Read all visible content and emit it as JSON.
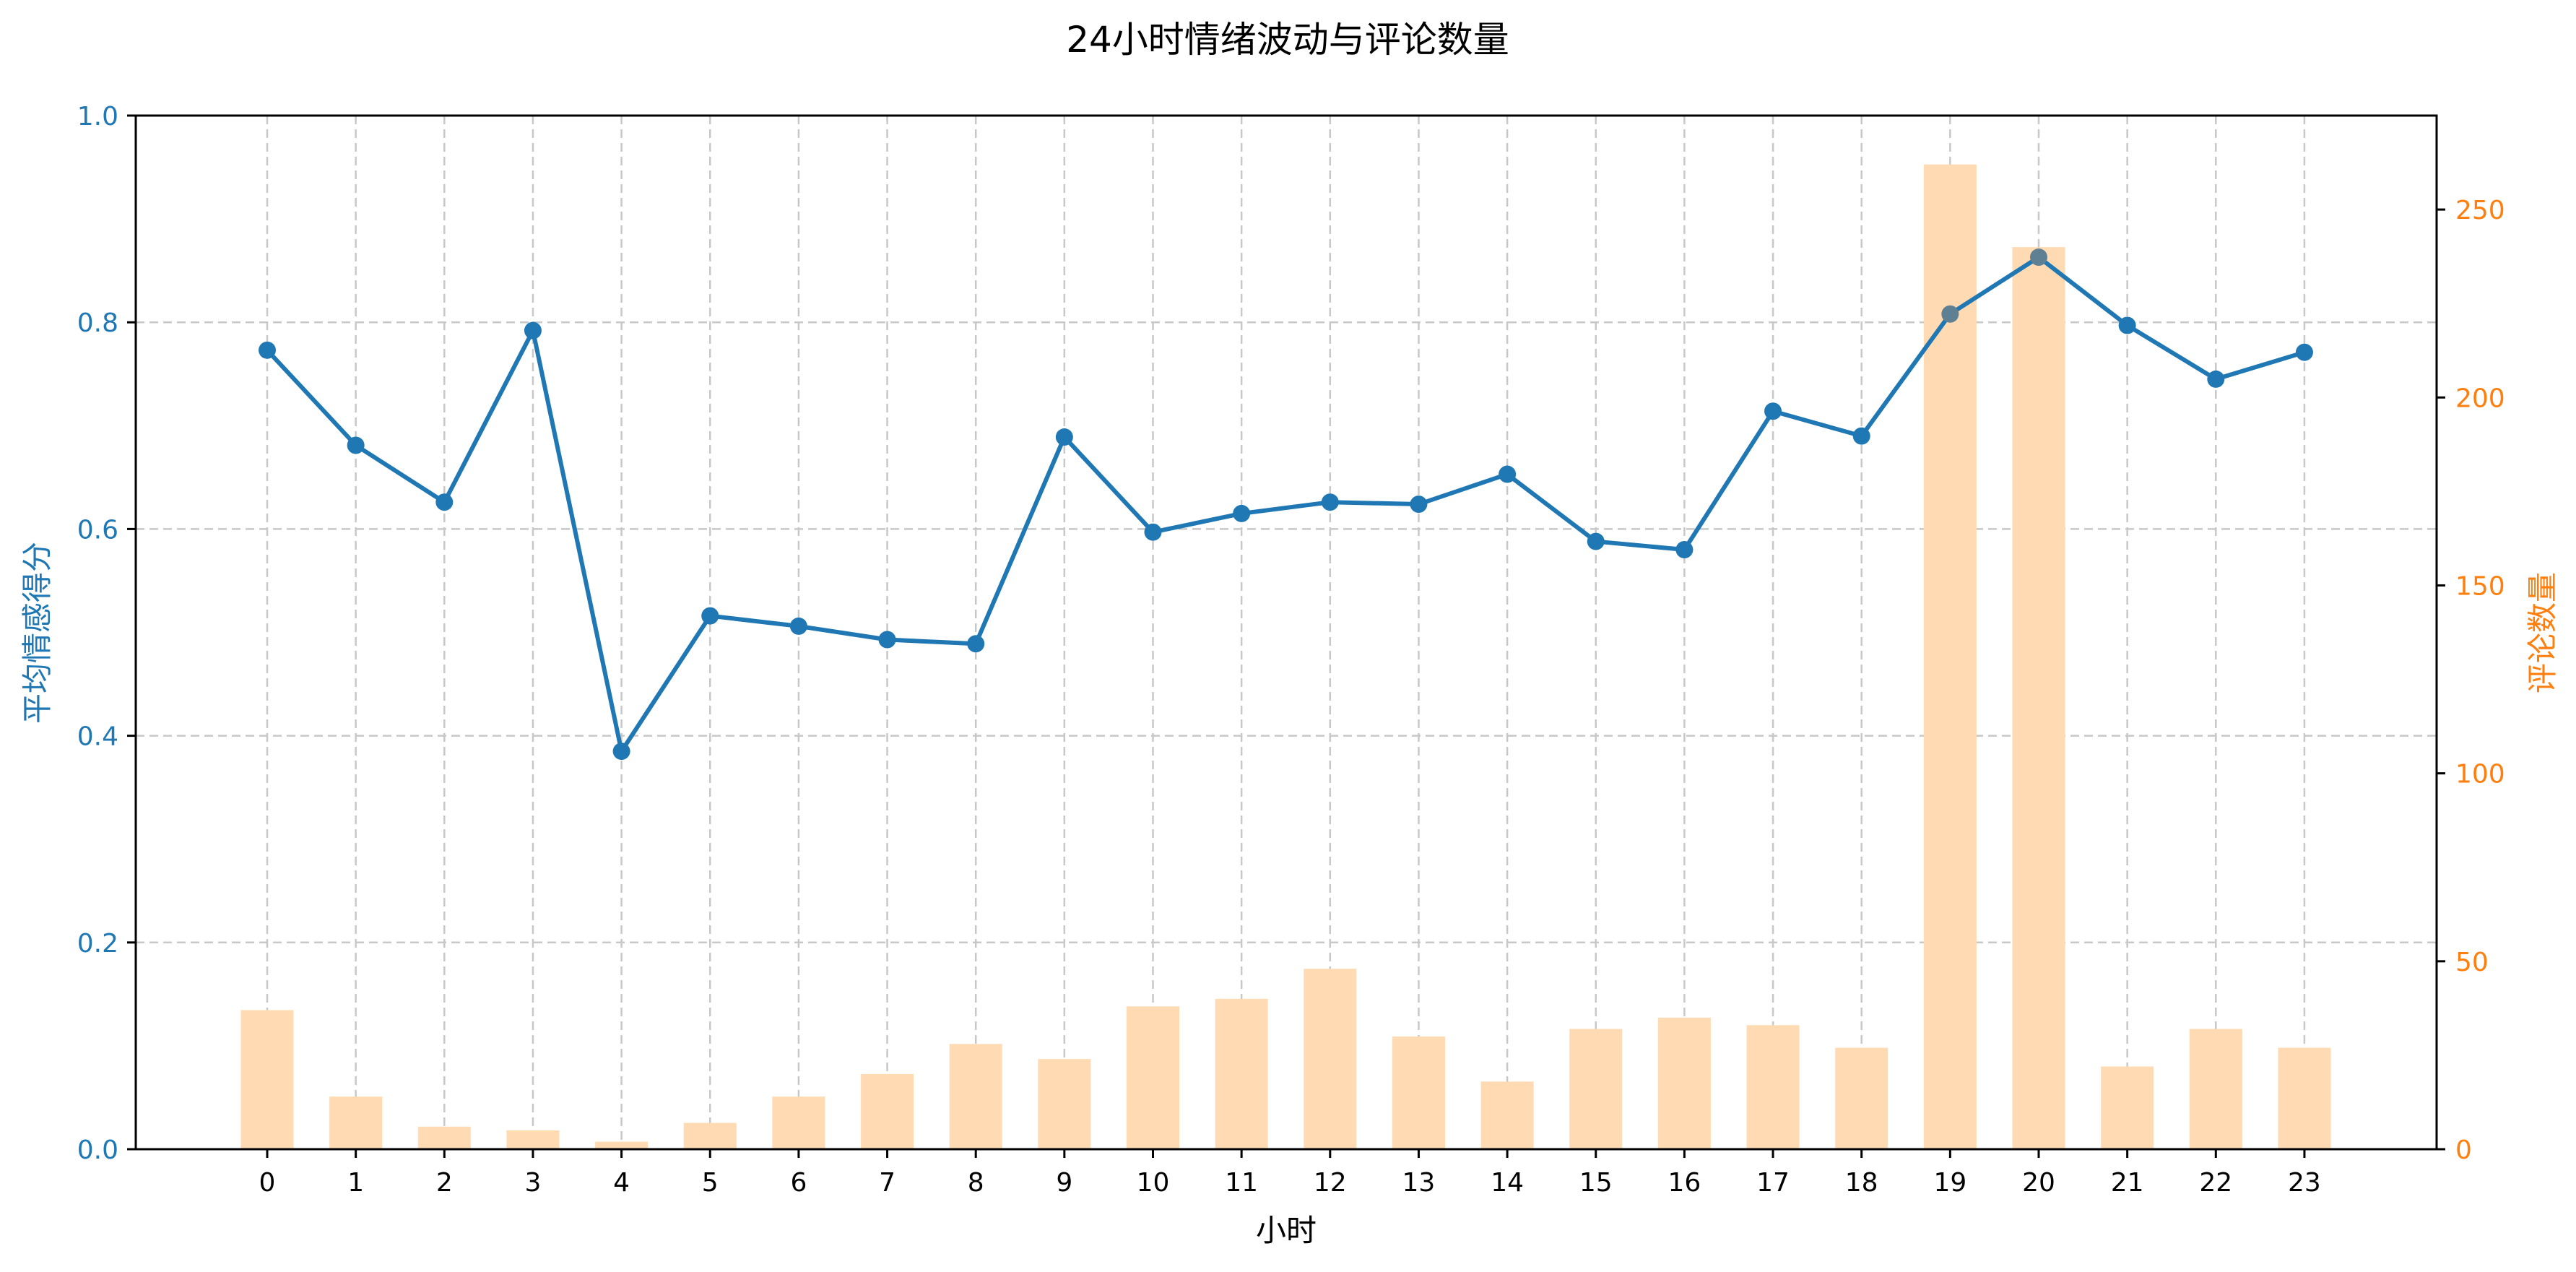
{
  "chart_data": {
    "type": "bar+line",
    "title": "24小时情绪波动与评论数量",
    "xlabel": "小时",
    "ylabel_left": "平均情感得分",
    "ylabel_right": "评论数量",
    "categories": [
      "0",
      "1",
      "2",
      "3",
      "4",
      "5",
      "6",
      "7",
      "8",
      "9",
      "10",
      "11",
      "12",
      "13",
      "14",
      "15",
      "16",
      "17",
      "18",
      "19",
      "20",
      "21",
      "22",
      "23"
    ],
    "ylim_left": [
      0,
      1.0
    ],
    "ylim_right": [
      0,
      275
    ],
    "yticks_left": [
      "0.0",
      "0.2",
      "0.4",
      "0.6",
      "0.8",
      "1.0"
    ],
    "yticks_right": [
      "0",
      "50",
      "100",
      "150",
      "200",
      "250"
    ],
    "grid": true,
    "series": [
      {
        "type": "bar",
        "axis": "right",
        "color": "#ffdab3",
        "values": [
          37,
          14,
          6,
          5,
          2,
          7,
          14,
          20,
          28,
          24,
          38,
          40,
          48,
          30,
          18,
          32,
          35,
          33,
          27,
          262,
          240,
          22,
          32,
          27
        ]
      },
      {
        "type": "line",
        "axis": "left",
        "color": "#1f77b4",
        "values": [
          0.773,
          0.681,
          0.626,
          0.792,
          0.385,
          0.516,
          0.506,
          0.493,
          0.489,
          0.689,
          0.597,
          0.615,
          0.626,
          0.624,
          0.653,
          0.588,
          0.58,
          0.714,
          0.69,
          0.808,
          0.863,
          0.797,
          0.745,
          0.771
        ]
      }
    ]
  }
}
